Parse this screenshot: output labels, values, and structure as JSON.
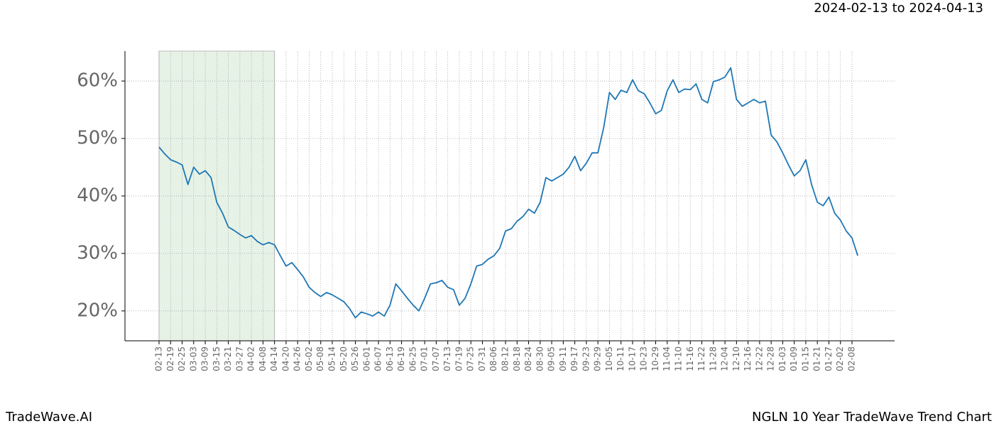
{
  "chart_data": {
    "type": "line",
    "title": "NGLN 10 Year TradeWave Trend Chart",
    "subtitle": "2024-02-13 to 2024-04-13",
    "watermark": "TradeWave.AI",
    "categories": [
      "02-13",
      null,
      "02-19",
      null,
      "02-25",
      null,
      "03-03",
      null,
      "03-09",
      null,
      "03-15",
      null,
      "03-21",
      null,
      "03-27",
      null,
      "04-02",
      null,
      "04-08",
      null,
      "04-14",
      null,
      "04-20",
      null,
      "04-26",
      null,
      "05-02",
      null,
      "05-08",
      null,
      "05-14",
      null,
      "05-20",
      null,
      "05-26",
      null,
      "06-01",
      null,
      "06-07",
      null,
      "06-13",
      null,
      "06-19",
      null,
      "06-25",
      null,
      "07-01",
      null,
      "07-07",
      null,
      "07-13",
      null,
      "07-19",
      null,
      "07-25",
      null,
      "07-31",
      null,
      "08-06",
      null,
      "08-12",
      null,
      "08-18",
      null,
      "08-24",
      null,
      "08-30",
      null,
      "09-05",
      null,
      "09-11",
      null,
      "09-17",
      null,
      "09-23",
      null,
      "09-29",
      null,
      "10-05",
      null,
      "10-11",
      null,
      "10-17",
      null,
      "10-23",
      null,
      "10-29",
      null,
      "11-04",
      null,
      "11-10",
      null,
      "11-16",
      null,
      "11-22",
      null,
      "11-28",
      null,
      "12-04",
      null,
      "12-10",
      null,
      "12-16",
      null,
      "12-22",
      null,
      "12-28",
      null,
      "01-03",
      null,
      "01-09",
      null,
      "01-15",
      null,
      "01-21",
      null,
      "01-27",
      null,
      "02-02",
      null,
      "02-08",
      null
    ],
    "series": [
      {
        "name": "NGLN",
        "color": "#1f77b4",
        "values": [
          48.5,
          47.3,
          46.3,
          45.9,
          45.4,
          42,
          45,
          43.8,
          44.4,
          43.2,
          38.9,
          37,
          34.6,
          34,
          33.3,
          32.7,
          33.1,
          32.1,
          31.5,
          31.9,
          31.5,
          29.6,
          27.8,
          28.4,
          27.2,
          25.9,
          24.1,
          23.2,
          22.5,
          23.2,
          22.8,
          22.2,
          21.6,
          20.4,
          18.8,
          19.8,
          19.5,
          19.1,
          19.8,
          19.1,
          21,
          24.7,
          23.5,
          22.2,
          21,
          20,
          22.2,
          24.7,
          24.9,
          25.3,
          24.1,
          23.7,
          21,
          22.2,
          24.7,
          27.8,
          28.1,
          29,
          29.6,
          30.9,
          33.9,
          34.3,
          35.6,
          36.4,
          37.7,
          37,
          38.9,
          43.2,
          42.6,
          43.2,
          43.8,
          45,
          46.9,
          44.4,
          45.7,
          47.5,
          47.5,
          51.9,
          58,
          56.8,
          58.4,
          58,
          60.2,
          58.3,
          57.8,
          56.2,
          54.3,
          54.9,
          58.3,
          60.2,
          58,
          58.6,
          58.5,
          59.5,
          56.8,
          56.2,
          59.9,
          60.2,
          60.7,
          62.3,
          56.8,
          55.6,
          56.2,
          56.8,
          56.2,
          56.5,
          50.6,
          49.4,
          47.5,
          45.4,
          43.5,
          44.4,
          46.3,
          42,
          38.9,
          38.3,
          39.8,
          37,
          35.8,
          33.9,
          32.7,
          29.6
        ]
      }
    ],
    "shaded_range": [
      "02-13",
      "04-14"
    ],
    "shade_color": "#e6f2e6",
    "ylim": [
      14.8,
      65.2
    ],
    "yticks": [
      {
        "value": 20,
        "label": "20%"
      },
      {
        "value": 30,
        "label": "30%"
      },
      {
        "value": 40,
        "label": "40%"
      },
      {
        "value": 50,
        "label": "50%"
      },
      {
        "value": 60,
        "label": "60%"
      }
    ],
    "grid": true
  }
}
